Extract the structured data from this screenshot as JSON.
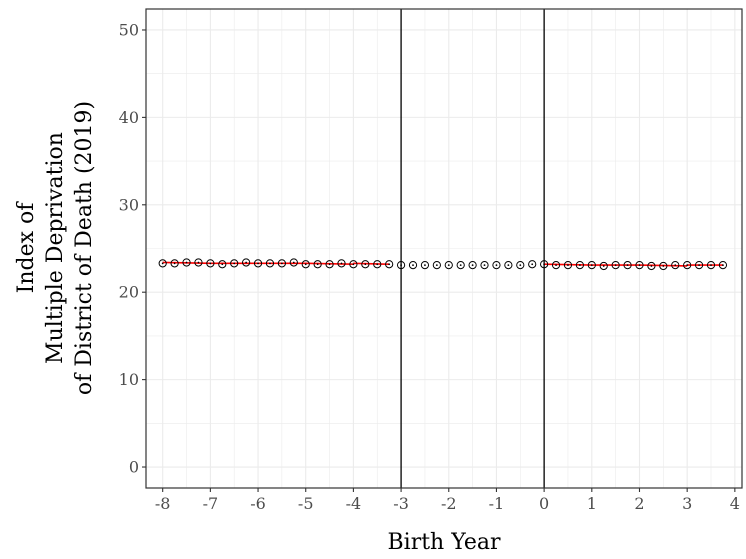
{
  "chart_data": {
    "type": "scatter",
    "xlabel": "Birth Year",
    "ylabel_lines": [
      "Index of",
      "Multiple Deprivation",
      "of District of Death (2019)"
    ],
    "xlim": [
      -8.35,
      4.15
    ],
    "ylim": [
      -2.4,
      52.4
    ],
    "x_ticks": [
      -8,
      -7,
      -6,
      -5,
      -4,
      -3,
      -2,
      -1,
      0,
      1,
      2,
      3,
      4
    ],
    "y_ticks": [
      0,
      10,
      20,
      30,
      40,
      50
    ],
    "vertical_lines": [
      -3,
      0
    ],
    "grid": true,
    "legend": "none",
    "colors": {
      "points": "#000000",
      "fit_segments": "#ff0000",
      "ref_lines": "#000000",
      "grid": "#ebebeb"
    },
    "points": [
      {
        "x": -8.0,
        "y": 23.3
      },
      {
        "x": -7.75,
        "y": 23.3
      },
      {
        "x": -7.5,
        "y": 23.4
      },
      {
        "x": -7.25,
        "y": 23.4
      },
      {
        "x": -7.0,
        "y": 23.3
      },
      {
        "x": -6.75,
        "y": 23.2
      },
      {
        "x": -6.5,
        "y": 23.3
      },
      {
        "x": -6.25,
        "y": 23.4
      },
      {
        "x": -6.0,
        "y": 23.3
      },
      {
        "x": -5.75,
        "y": 23.3
      },
      {
        "x": -5.5,
        "y": 23.3
      },
      {
        "x": -5.25,
        "y": 23.4
      },
      {
        "x": -5.0,
        "y": 23.2
      },
      {
        "x": -4.75,
        "y": 23.2
      },
      {
        "x": -4.5,
        "y": 23.2
      },
      {
        "x": -4.25,
        "y": 23.3
      },
      {
        "x": -4.0,
        "y": 23.2
      },
      {
        "x": -3.75,
        "y": 23.2
      },
      {
        "x": -3.5,
        "y": 23.2
      },
      {
        "x": -3.25,
        "y": 23.2
      },
      {
        "x": -3.0,
        "y": 23.1
      },
      {
        "x": -2.75,
        "y": 23.1
      },
      {
        "x": -2.5,
        "y": 23.1
      },
      {
        "x": -2.25,
        "y": 23.1
      },
      {
        "x": -2.0,
        "y": 23.1
      },
      {
        "x": -1.75,
        "y": 23.1
      },
      {
        "x": -1.5,
        "y": 23.1
      },
      {
        "x": -1.25,
        "y": 23.1
      },
      {
        "x": -1.0,
        "y": 23.1
      },
      {
        "x": -0.75,
        "y": 23.1
      },
      {
        "x": -0.5,
        "y": 23.1
      },
      {
        "x": -0.25,
        "y": 23.2
      },
      {
        "x": 0.0,
        "y": 23.2
      },
      {
        "x": 0.25,
        "y": 23.1
      },
      {
        "x": 0.5,
        "y": 23.1
      },
      {
        "x": 0.75,
        "y": 23.1
      },
      {
        "x": 1.0,
        "y": 23.1
      },
      {
        "x": 1.25,
        "y": 23.0
      },
      {
        "x": 1.5,
        "y": 23.1
      },
      {
        "x": 1.75,
        "y": 23.1
      },
      {
        "x": 2.0,
        "y": 23.1
      },
      {
        "x": 2.25,
        "y": 23.0
      },
      {
        "x": 2.5,
        "y": 23.0
      },
      {
        "x": 2.75,
        "y": 23.1
      },
      {
        "x": 3.0,
        "y": 23.1
      },
      {
        "x": 3.25,
        "y": 23.1
      },
      {
        "x": 3.5,
        "y": 23.1
      },
      {
        "x": 3.75,
        "y": 23.1
      }
    ],
    "fit_segments": [
      {
        "x": [
          -8.0,
          -7.0
        ],
        "y": [
          23.4,
          23.3
        ]
      },
      {
        "x": [
          -7.0,
          -6.0
        ],
        "y": [
          23.3,
          23.3
        ]
      },
      {
        "x": [
          -6.0,
          -5.0
        ],
        "y": [
          23.3,
          23.3
        ]
      },
      {
        "x": [
          -5.0,
          -4.0
        ],
        "y": [
          23.3,
          23.2
        ]
      },
      {
        "x": [
          -4.0,
          -3.25
        ],
        "y": [
          23.3,
          23.2
        ]
      },
      {
        "x": [
          0.0,
          1.0
        ],
        "y": [
          23.2,
          23.1
        ]
      },
      {
        "x": [
          1.0,
          2.0
        ],
        "y": [
          23.1,
          23.1
        ]
      },
      {
        "x": [
          2.0,
          3.0
        ],
        "y": [
          23.1,
          23.0
        ]
      },
      {
        "x": [
          3.0,
          3.75
        ],
        "y": [
          23.1,
          23.1
        ]
      }
    ]
  }
}
